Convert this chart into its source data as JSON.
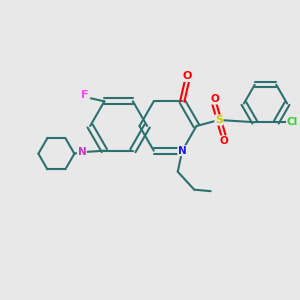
{
  "background_color": "#e8e8e8",
  "figsize": [
    3.0,
    3.0
  ],
  "dpi": 100,
  "bond_color": "#2d7070",
  "atom_colors": {
    "O": "#ff0000",
    "N_q": "#1a1aff",
    "N_pip": "#cc33cc",
    "F": "#ff44ff",
    "Cl": "#33cc33",
    "S": "#cccc00",
    "C": "#2d7070"
  },
  "lw": 1.5
}
